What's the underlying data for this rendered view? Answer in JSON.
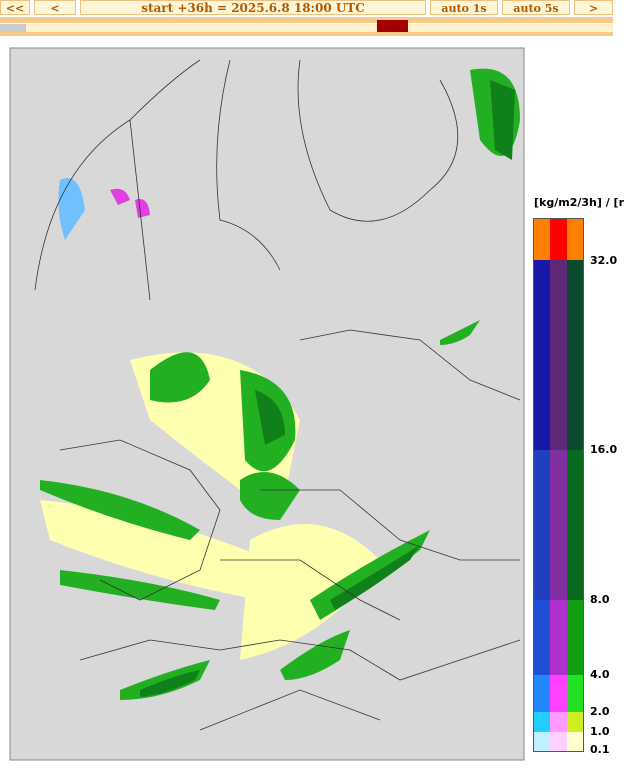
{
  "nav": {
    "first": "<<",
    "prev": "<",
    "status": "start +36h  =  2025.6.8 18:00 UTC",
    "auto1": "auto 1s",
    "auto5": "auto 5s",
    "next": ">"
  },
  "legend": {
    "title": "[kg/m2/3h] / [r",
    "labels": [
      "32.0",
      "16.0",
      "8.0",
      "4.0",
      "2.0",
      "1.0",
      "0.1"
    ]
  }
}
